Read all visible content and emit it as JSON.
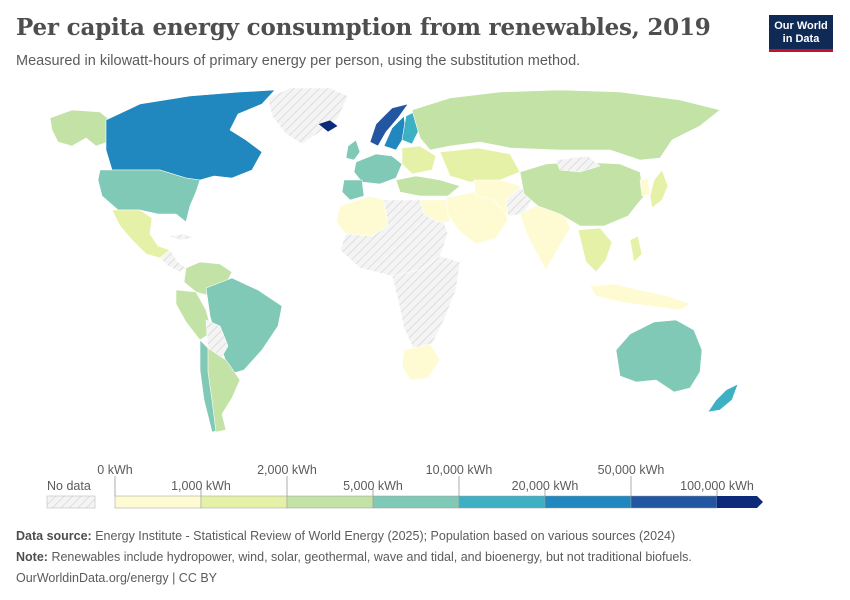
{
  "header": {
    "title": "Per capita energy consumption from renewables, 2019",
    "subtitle": "Measured in kilowatt-hours of primary energy per person, using the substitution method.",
    "logo_line1": "Our World",
    "logo_line2": "in Data"
  },
  "legend": {
    "no_data_label": "No data",
    "bins": [
      {
        "label": "0 kWh",
        "color": "#fefbd3"
      },
      {
        "label": "1,000 kWh",
        "color": "#e6f1a8"
      },
      {
        "label": "2,000 kWh",
        "color": "#c2e2a6"
      },
      {
        "label": "5,000 kWh",
        "color": "#7fc9b6"
      },
      {
        "label": "10,000 kWh",
        "color": "#3eb0c4"
      },
      {
        "label": "20,000 kWh",
        "color": "#2088be"
      },
      {
        "label": "50,000 kWh",
        "color": "#2256a0"
      },
      {
        "label": "100,000 kWh",
        "color": "#0d2a7a"
      }
    ],
    "max_color": "#0d2a7a"
  },
  "colors": {
    "no_data": "#f0f0f0",
    "bin0": "#fefbd3",
    "bin1": "#e6f1a8",
    "bin2": "#c2e2a6",
    "bin3": "#7fc9b6",
    "bin4": "#3eb0c4",
    "bin5": "#2088be",
    "bin6": "#2256a0",
    "bin7": "#0d2a7a"
  },
  "footer": {
    "source_label": "Data source:",
    "source_text": "Energy Institute - Statistical Review of World Energy (2025); Population based on various sources (2024)",
    "note_label": "Note:",
    "note_text": "Renewables include hydropower, wind, solar, geothermal, wave and tidal, and bioenergy, but not traditional biofuels.",
    "url": "OurWorldinData.org/energy | CC BY"
  }
}
